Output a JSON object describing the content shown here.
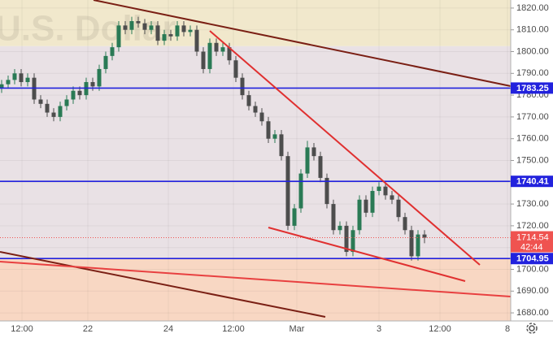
{
  "chart_data": {
    "type": "candlestick",
    "watermark": "U.S. Dollar",
    "ylim": [
      1676.3,
      1823.7
    ],
    "yticks": [
      {
        "value": 1680,
        "label": "1680.00"
      },
      {
        "value": 1690,
        "label": "1690.00"
      },
      {
        "value": 1700,
        "label": "1700.00"
      },
      {
        "value": 1710,
        "label": "1710.00"
      },
      {
        "value": 1720,
        "label": "1720.00"
      },
      {
        "value": 1730,
        "label": "1730.00"
      },
      {
        "value": 1740,
        "label": "1740.00"
      },
      {
        "value": 1750,
        "label": "1750.00"
      },
      {
        "value": 1760,
        "label": "1760.00"
      },
      {
        "value": 1770,
        "label": "1770.00"
      },
      {
        "value": 1780,
        "label": "1780.00"
      },
      {
        "value": 1790,
        "label": "1790.00"
      },
      {
        "value": 1800,
        "label": "1800.00"
      },
      {
        "value": 1810,
        "label": "1810.00"
      },
      {
        "value": 1820,
        "label": "1820.00"
      }
    ],
    "xticks": [
      "12:00",
      "22",
      "24",
      "12:00",
      "Mar",
      "3",
      "12:00",
      "8"
    ],
    "zones": [
      {
        "from": 1802.5,
        "to": 1823.7,
        "color": "#f1e8cc"
      },
      {
        "from": 1704.95,
        "to": 1802.5,
        "color": "#e9e1e5"
      },
      {
        "from": 1676.3,
        "to": 1704.95,
        "color": "#f8d7c3"
      }
    ],
    "levels": [
      {
        "value": 1783.25,
        "color": "#2222dd"
      },
      {
        "value": 1740.41,
        "color": "#2222dd"
      },
      {
        "value": 1704.95,
        "color": "#2222dd"
      }
    ],
    "last": {
      "value": 1714.54,
      "countdown": "42:44",
      "color": "#ef5350"
    },
    "up_color": "#2a7a55",
    "down_color": "#4d4d4d",
    "open": [
      1783,
      1785,
      1787,
      1790,
      1786,
      1788,
      1778,
      1776,
      1772,
      1770,
      1775,
      1778,
      1782,
      1780,
      1786,
      1784,
      1792,
      1798,
      1802,
      1812,
      1810,
      1814,
      1813,
      1810,
      1812,
      1805,
      1808,
      1807,
      1812,
      1809,
      1810,
      1800,
      1792,
      1804,
      1800,
      1802,
      1796,
      1788,
      1780,
      1775,
      1772,
      1768,
      1760,
      1762,
      1752,
      1720,
      1728,
      1744,
      1756,
      1752,
      1742,
      1730,
      1718,
      1720,
      1708,
      1718,
      1732,
      1726,
      1736,
      1738,
      1734,
      1732,
      1724,
      1718,
      1706,
      1716
    ],
    "high": [
      1787,
      1789,
      1792,
      1792,
      1790,
      1790,
      1780,
      1778,
      1774,
      1777,
      1780,
      1784,
      1784,
      1788,
      1788,
      1794,
      1800,
      1804,
      1814,
      1814,
      1816,
      1816,
      1815,
      1814,
      1814,
      1810,
      1810,
      1814,
      1814,
      1812,
      1812,
      1802,
      1806,
      1806,
      1804,
      1804,
      1798,
      1790,
      1782,
      1777,
      1774,
      1770,
      1764,
      1764,
      1754,
      1730,
      1746,
      1759,
      1758,
      1754,
      1744,
      1732,
      1722,
      1722,
      1720,
      1734,
      1734,
      1738,
      1740,
      1740,
      1736,
      1734,
      1726,
      1720,
      1718,
      1718
    ],
    "low": [
      1781,
      1783,
      1785,
      1784,
      1784,
      1776,
      1774,
      1770,
      1768,
      1768,
      1773,
      1776,
      1778,
      1778,
      1782,
      1782,
      1790,
      1796,
      1800,
      1808,
      1808,
      1811,
      1808,
      1808,
      1803,
      1803,
      1805,
      1805,
      1807,
      1807,
      1798,
      1790,
      1790,
      1798,
      1798,
      1794,
      1786,
      1778,
      1773,
      1770,
      1766,
      1758,
      1758,
      1750,
      1718,
      1718,
      1726,
      1742,
      1750,
      1740,
      1728,
      1716,
      1716,
      1706,
      1706,
      1716,
      1724,
      1724,
      1734,
      1732,
      1730,
      1722,
      1716,
      1704,
      1704,
      1712
    ],
    "close": [
      1785,
      1787,
      1790,
      1786,
      1788,
      1778,
      1776,
      1772,
      1770,
      1775,
      1778,
      1782,
      1780,
      1786,
      1784,
      1792,
      1798,
      1802,
      1812,
      1810,
      1814,
      1813,
      1810,
      1812,
      1805,
      1808,
      1807,
      1812,
      1809,
      1810,
      1800,
      1792,
      1804,
      1800,
      1802,
      1796,
      1788,
      1780,
      1775,
      1772,
      1768,
      1760,
      1762,
      1752,
      1720,
      1728,
      1744,
      1756,
      1752,
      1742,
      1730,
      1718,
      1720,
      1708,
      1718,
      1732,
      1726,
      1736,
      1738,
      1734,
      1732,
      1724,
      1718,
      1706,
      1716,
      1714.54
    ]
  }
}
